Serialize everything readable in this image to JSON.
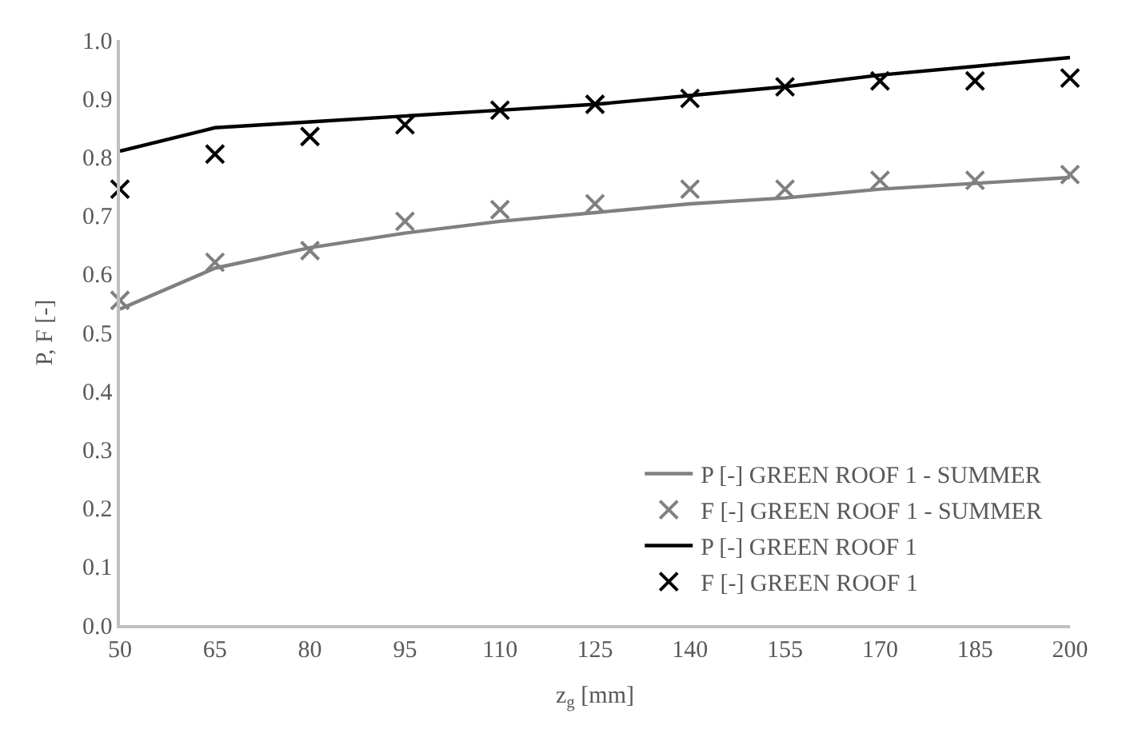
{
  "chart_data": {
    "type": "line",
    "xlabel": "z$_{g}$ [mm]",
    "ylabel": "P, F [-]",
    "x": [
      50,
      65,
      80,
      95,
      110,
      125,
      140,
      155,
      170,
      185,
      200
    ],
    "xlim": [
      50,
      200
    ],
    "xticks": [
      50,
      65,
      80,
      95,
      110,
      125,
      140,
      155,
      170,
      185,
      200
    ],
    "ylim": [
      0,
      1
    ],
    "yticks": [
      {
        "value": 0,
        "label": "0.0"
      },
      0.1,
      0.2,
      0.3,
      0.4,
      0.5,
      0.6,
      0.7,
      0.8,
      0.9,
      {
        "value": 1,
        "label": "1.0"
      }
    ],
    "grid": false,
    "legend": "bottom right",
    "series": [
      {
        "name": "P [-] GREEN ROOF 1 - SUMMER",
        "marker": "none",
        "color": "#808080",
        "values": [
          0.54,
          0.61,
          0.645,
          0.67,
          0.69,
          0.705,
          0.72,
          0.73,
          0.745,
          0.755,
          0.765
        ]
      },
      {
        "name": "F [-] GREEN ROOF 1 - SUMMER",
        "type": "scatter",
        "marker": "cross",
        "color": "#808080",
        "values": [
          0.555,
          0.62,
          0.64,
          0.69,
          0.71,
          0.72,
          0.745,
          0.745,
          0.76,
          0.76,
          0.77
        ]
      },
      {
        "name": "P [-] GREEN ROOF 1",
        "marker": "none",
        "color": "#000000",
        "values": [
          0.81,
          0.85,
          0.86,
          0.87,
          0.88,
          0.89,
          0.905,
          0.92,
          0.94,
          0.955,
          0.97
        ]
      },
      {
        "name": "F [-] GREEN ROOF 1",
        "type": "scatter",
        "marker": "cross",
        "color": "#000000",
        "values": [
          0.745,
          0.805,
          0.835,
          0.855,
          0.88,
          0.89,
          0.9,
          0.92,
          0.93,
          0.93,
          0.935
        ]
      }
    ]
  }
}
